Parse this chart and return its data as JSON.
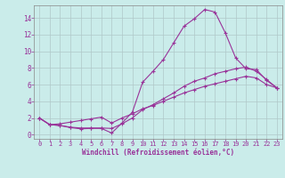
{
  "xlabel": "Windchill (Refroidissement éolien,°C)",
  "bg_color": "#caecea",
  "line_color": "#993399",
  "grid_color": "#b0c8c8",
  "x_ticks": [
    0,
    1,
    2,
    3,
    4,
    5,
    6,
    7,
    8,
    9,
    10,
    11,
    12,
    13,
    14,
    15,
    16,
    17,
    18,
    19,
    20,
    21,
    22,
    23
  ],
  "y_ticks": [
    0,
    2,
    4,
    6,
    8,
    10,
    12,
    14
  ],
  "xlim": [
    -0.5,
    23.5
  ],
  "ylim": [
    -0.5,
    15.5
  ],
  "line1_x": [
    0,
    1,
    2,
    3,
    4,
    5,
    6,
    7,
    8,
    9,
    10,
    11,
    12,
    13,
    14,
    15,
    16,
    17,
    18,
    19,
    20,
    21,
    22,
    23
  ],
  "line1_y": [
    2.0,
    1.2,
    1.1,
    0.85,
    0.7,
    0.75,
    0.75,
    0.2,
    1.4,
    2.7,
    6.3,
    7.6,
    9.0,
    11.0,
    13.0,
    13.9,
    15.0,
    14.7,
    12.2,
    9.2,
    7.9,
    7.8,
    6.5,
    5.6
  ],
  "line2_x": [
    0,
    1,
    2,
    3,
    4,
    5,
    6,
    7,
    8,
    9,
    10,
    11,
    12,
    13,
    14,
    15,
    16,
    17,
    18,
    19,
    20,
    21,
    22,
    23
  ],
  "line2_y": [
    2.0,
    1.2,
    1.1,
    0.9,
    0.8,
    0.8,
    0.8,
    0.75,
    1.3,
    2.0,
    3.0,
    3.6,
    4.3,
    5.0,
    5.8,
    6.4,
    6.8,
    7.3,
    7.6,
    7.9,
    8.1,
    7.6,
    6.6,
    5.6
  ],
  "line3_x": [
    0,
    1,
    2,
    3,
    4,
    5,
    6,
    7,
    8,
    9,
    10,
    11,
    12,
    13,
    14,
    15,
    16,
    17,
    18,
    19,
    20,
    21,
    22,
    23
  ],
  "line3_y": [
    2.0,
    1.2,
    1.3,
    1.5,
    1.7,
    1.9,
    2.1,
    1.4,
    2.0,
    2.5,
    3.1,
    3.5,
    4.0,
    4.5,
    5.0,
    5.4,
    5.8,
    6.1,
    6.4,
    6.7,
    7.0,
    6.8,
    6.0,
    5.6
  ]
}
